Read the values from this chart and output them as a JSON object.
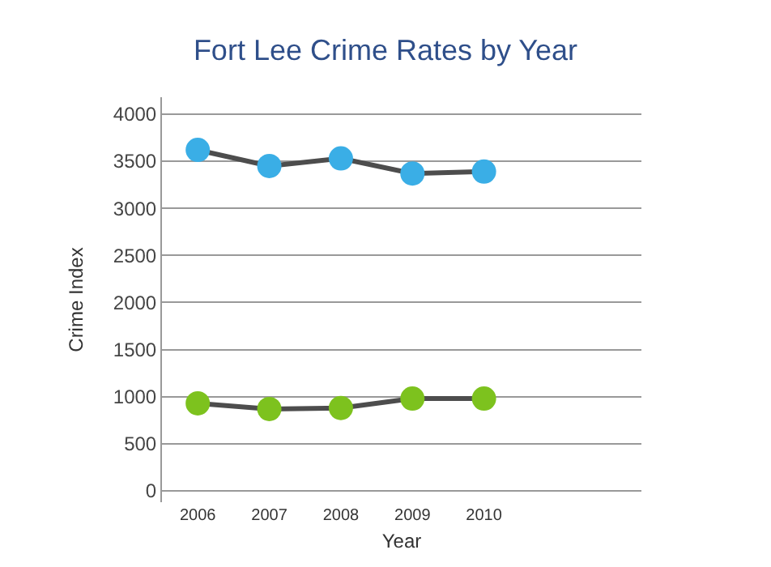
{
  "chart_data": {
    "type": "line",
    "title": "Fort Lee Crime Rates by Year",
    "xlabel": "Year",
    "ylabel": "Crime Index",
    "x": [
      2006,
      2007,
      2008,
      2009,
      2010
    ],
    "series": [
      {
        "color": "#3aaee6",
        "values": [
          3620,
          3450,
          3530,
          3370,
          3390
        ]
      },
      {
        "color": "#7dc21e",
        "values": [
          930,
          870,
          880,
          980,
          980
        ]
      }
    ],
    "xlim": [
      2005.5,
      2012.2
    ],
    "xticks": [
      2006,
      2007,
      2008,
      2009,
      2010
    ],
    "ylim": [
      -120,
      4180
    ],
    "yticks": [
      0,
      500,
      1000,
      1500,
      2000,
      2500,
      3000,
      3500,
      4000
    ],
    "grid": "y",
    "marker": "circle",
    "line_style": "solid"
  }
}
